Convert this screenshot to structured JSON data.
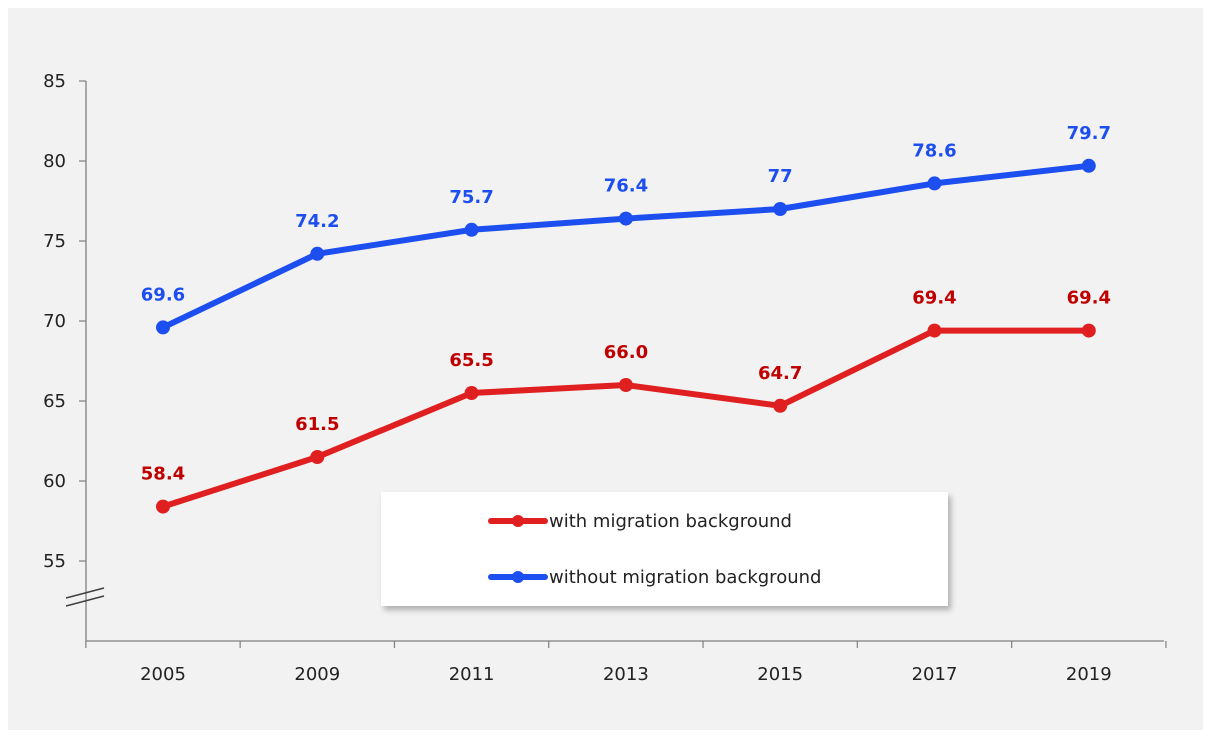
{
  "chart_data": {
    "type": "line",
    "categories": [
      "2005",
      "2009",
      "2011",
      "2013",
      "2015",
      "2017",
      "2019"
    ],
    "series": [
      {
        "name": "with migration background",
        "color": "#e02020",
        "label_color": "#c00000",
        "values": [
          58.4,
          61.5,
          65.5,
          66.0,
          64.7,
          69.4,
          69.4
        ],
        "labels": [
          "58.4",
          "61.5",
          "65.5",
          "66.0",
          "64.7",
          "69.4",
          "69.4"
        ]
      },
      {
        "name": "without migration background",
        "color": "#1d4ef0",
        "label_color": "#1d4ef0",
        "values": [
          69.6,
          74.2,
          75.7,
          76.4,
          77,
          78.6,
          79.7
        ],
        "labels": [
          "69.6",
          "74.2",
          "75.7",
          "76.4",
          "77",
          "78.6",
          "79.7"
        ]
      }
    ],
    "y_ticks": [
      "55",
      "60",
      "65",
      "70",
      "75",
      "80",
      "85"
    ],
    "ylim": [
      55,
      85
    ],
    "y_axis_break": true,
    "grid": false,
    "legend_position": "bottom-center"
  }
}
